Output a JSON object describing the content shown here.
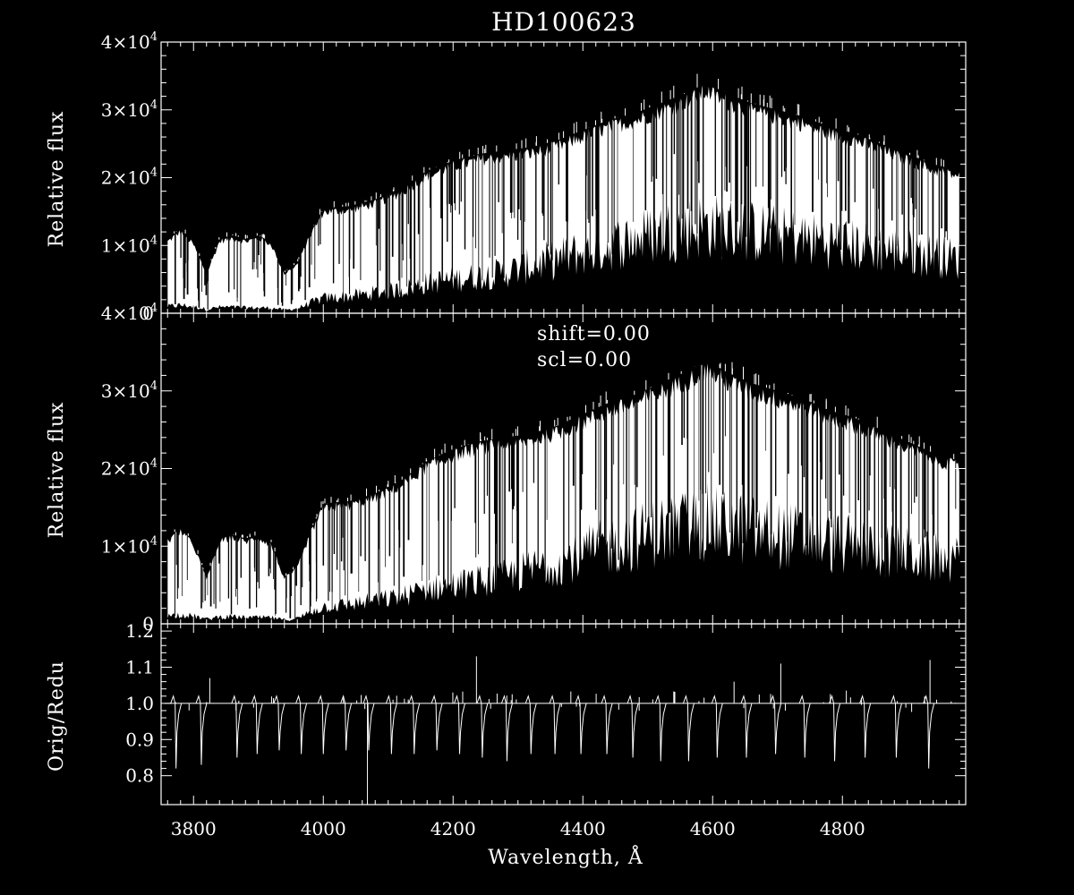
{
  "chart_data": [
    {
      "type": "line",
      "panel": "top",
      "title": "HD100623",
      "ylabel": "Relative flux",
      "xlim": [
        3750,
        4990
      ],
      "ylim": [
        0,
        40000
      ],
      "yticks": [
        0,
        10000,
        20000,
        30000,
        40000
      ],
      "ytick_labels": [
        "0",
        "1×10",
        "2×10",
        "3×10",
        "4×10"
      ],
      "ytick_exp": "4",
      "series": [
        {
          "x": [
            3760,
            3780,
            3800,
            3820,
            3840,
            3860,
            3880,
            3900,
            3920,
            3940,
            3960,
            3980,
            4000,
            4040,
            4080,
            4120,
            4160,
            4200,
            4240,
            4280,
            4320,
            4360,
            4400,
            4440,
            4480,
            4520,
            4560,
            4590,
            4620,
            4660,
            4700,
            4740,
            4780,
            4820,
            4860,
            4900,
            4940,
            4980
          ],
          "upper": [
            11000,
            12500,
            10500,
            6000,
            11000,
            11500,
            11000,
            11500,
            10500,
            6000,
            7500,
            12000,
            15500,
            15800,
            16800,
            18500,
            21000,
            22500,
            23500,
            24000,
            24500,
            25500,
            27000,
            28500,
            29500,
            31000,
            32500,
            34000,
            32500,
            31000,
            30000,
            29000,
            27500,
            26500,
            25000,
            23500,
            22000,
            21000
          ],
          "lower": [
            1000,
            1200,
            1000,
            600,
            900,
            900,
            800,
            800,
            800,
            500,
            700,
            1500,
            2200,
            2500,
            3000,
            3500,
            4500,
            5000,
            5500,
            6000,
            7000,
            8000,
            9000,
            10000,
            11000,
            12000,
            12500,
            13000,
            12500,
            12000,
            11500,
            11000,
            10500,
            10000,
            9500,
            9000,
            8500,
            8000
          ]
        }
      ]
    },
    {
      "type": "line",
      "panel": "middle",
      "ylabel": "Relative flux",
      "annotations": [
        "shift=0.00",
        "scl=0.00"
      ],
      "xlim": [
        3750,
        4990
      ],
      "ylim": [
        0,
        40000
      ],
      "yticks": [
        0,
        10000,
        20000,
        30000,
        40000
      ],
      "ytick_labels": [
        "0",
        "1×10",
        "2×10",
        "3×10",
        "4×10"
      ],
      "ytick_exp": "4",
      "series": [
        {
          "x": [
            3760,
            3780,
            3800,
            3820,
            3840,
            3860,
            3880,
            3900,
            3920,
            3940,
            3960,
            3980,
            4000,
            4040,
            4080,
            4120,
            4160,
            4200,
            4240,
            4280,
            4320,
            4360,
            4400,
            4440,
            4480,
            4520,
            4560,
            4590,
            4620,
            4660,
            4700,
            4740,
            4780,
            4820,
            4860,
            4900,
            4940,
            4980
          ],
          "upper": [
            11000,
            12500,
            10500,
            6000,
            11000,
            11500,
            11000,
            11500,
            10500,
            6000,
            7500,
            12000,
            15500,
            15800,
            16800,
            18500,
            21000,
            22500,
            23500,
            24000,
            24500,
            25500,
            27000,
            28500,
            29500,
            31000,
            32500,
            34000,
            32500,
            31000,
            30000,
            29000,
            27500,
            26500,
            25000,
            23500,
            22000,
            21000
          ],
          "lower": [
            1000,
            1200,
            1000,
            600,
            900,
            900,
            800,
            800,
            800,
            500,
            700,
            1500,
            2200,
            2500,
            3000,
            3500,
            4500,
            5000,
            5500,
            6000,
            7000,
            8000,
            9000,
            10000,
            11000,
            12000,
            12500,
            13000,
            12500,
            12000,
            11500,
            11000,
            10500,
            10000,
            9500,
            9000,
            8500,
            8000
          ]
        }
      ]
    },
    {
      "type": "line",
      "panel": "bottom",
      "ylabel": "Orig/Redu",
      "xlabel": "Wavelength, Å",
      "xlim": [
        3750,
        4990
      ],
      "ylim": [
        0.72,
        1.22
      ],
      "yticks": [
        0.8,
        0.9,
        1.0,
        1.1,
        1.2
      ],
      "ytick_labels": [
        "0.8",
        "0.9",
        "1.0",
        "1.1",
        "1.2"
      ],
      "xticks": [
        3800,
        4000,
        4200,
        4400,
        4600,
        4800
      ],
      "xtick_labels": [
        "3800",
        "4000",
        "4200",
        "4400",
        "4600",
        "4800"
      ],
      "baseline": 1.0,
      "dips": [
        {
          "x": 3773,
          "min": 0.82
        },
        {
          "x": 3812,
          "min": 0.83
        },
        {
          "x": 3867,
          "min": 0.85
        },
        {
          "x": 3898,
          "min": 0.86
        },
        {
          "x": 3932,
          "min": 0.87
        },
        {
          "x": 3966,
          "min": 0.86
        },
        {
          "x": 4000,
          "min": 0.86
        },
        {
          "x": 4035,
          "min": 0.87
        },
        {
          "x": 4070,
          "min": 0.87
        },
        {
          "x": 4105,
          "min": 0.86
        },
        {
          "x": 4140,
          "min": 0.86
        },
        {
          "x": 4175,
          "min": 0.87
        },
        {
          "x": 4210,
          "min": 0.86
        },
        {
          "x": 4245,
          "min": 0.85
        },
        {
          "x": 4283,
          "min": 0.84
        },
        {
          "x": 4320,
          "min": 0.86
        },
        {
          "x": 4357,
          "min": 0.86
        },
        {
          "x": 4397,
          "min": 0.86
        },
        {
          "x": 4437,
          "min": 0.86
        },
        {
          "x": 4477,
          "min": 0.85
        },
        {
          "x": 4520,
          "min": 0.84
        },
        {
          "x": 4563,
          "min": 0.84
        },
        {
          "x": 4607,
          "min": 0.85
        },
        {
          "x": 4652,
          "min": 0.85
        },
        {
          "x": 4697,
          "min": 0.86
        },
        {
          "x": 4742,
          "min": 0.85
        },
        {
          "x": 4788,
          "min": 0.84
        },
        {
          "x": 4835,
          "min": 0.85
        },
        {
          "x": 4883,
          "min": 0.85
        },
        {
          "x": 4933,
          "min": 0.82
        }
      ],
      "spikes": [
        {
          "x": 4236,
          "value": 1.13
        },
        {
          "x": 4068,
          "value": 0.71
        },
        {
          "x": 4935,
          "value": 1.12
        },
        {
          "x": 4633,
          "value": 1.06
        },
        {
          "x": 4705,
          "value": 1.11
        },
        {
          "x": 3825,
          "value": 1.07
        }
      ]
    }
  ]
}
